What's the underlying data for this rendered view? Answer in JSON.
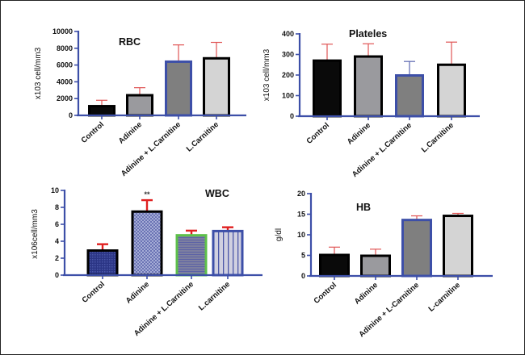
{
  "chart_data": [
    {
      "id": "rbc",
      "type": "bar",
      "title": "RBC",
      "ylabel": "x103 cell/mm3",
      "xlabel": "",
      "ylim": [
        0,
        10000
      ],
      "yticks": [
        0,
        2000,
        4000,
        6000,
        8000,
        10000
      ],
      "categories": [
        "Control",
        "Adinine",
        "Adinine + L.Carnitine",
        "L.Carnitine"
      ],
      "values": [
        1100,
        2400,
        6400,
        6800
      ],
      "errors": [
        700,
        900,
        2000,
        1900
      ],
      "bar_fills": [
        "#0a0a0a",
        "#9a9a9e",
        "#7f7f7f",
        "#d4d4d4"
      ],
      "bar_borders": [
        "#000000",
        "#000000",
        "#3d4fa8",
        "#000000"
      ],
      "error_color": "#e05555",
      "annotations": []
    },
    {
      "id": "platelets",
      "type": "bar",
      "title": "Plateles",
      "ylabel": "x103 cell/mm3",
      "xlabel": "",
      "ylim": [
        0,
        400
      ],
      "yticks": [
        0,
        100,
        200,
        300,
        400
      ],
      "categories": [
        "Control",
        "Adinine",
        "Adinine + L.Carnitine",
        "L.Carnitine"
      ],
      "values": [
        270,
        290,
        198,
        250
      ],
      "errors": [
        80,
        62,
        68,
        110
      ],
      "bar_fills": [
        "#0a0a0a",
        "#9a9a9e",
        "#7f7f7f",
        "#d4d4d4"
      ],
      "bar_borders": [
        "#000000",
        "#000000",
        "#3d4fa8",
        "#000000"
      ],
      "error_colors": [
        "#e05555",
        "#e05555",
        "#5a66b0",
        "#e05555"
      ],
      "annotations": []
    },
    {
      "id": "wbc",
      "type": "bar",
      "title": "WBC",
      "ylabel": "x106cell/mm3",
      "xlabel": "",
      "ylim": [
        0,
        10
      ],
      "yticks": [
        0,
        2,
        4,
        6,
        8,
        10
      ],
      "categories": [
        "Control",
        "Adinine",
        "Adinine + L.Carnitine",
        "L.carnitine"
      ],
      "values": [
        2.9,
        7.5,
        4.7,
        5.2
      ],
      "errors": [
        0.75,
        1.35,
        0.55,
        0.45
      ],
      "bar_fills": [
        "#2b3585",
        "#8a93c6",
        "#7076a8",
        "#c6c8dc"
      ],
      "bar_borders": [
        "#000000",
        "#000000",
        "#5ec04a",
        "#3d4fa8"
      ],
      "bar_patterns": [
        "dense-dots",
        "checker",
        "horizontal-lines",
        "vertical-lines"
      ],
      "error_color": "#e02020",
      "annotations": [
        {
          "category": "Adinine",
          "text": "**"
        }
      ]
    },
    {
      "id": "hb",
      "type": "bar",
      "title": "HB",
      "ylabel": "g/dl",
      "xlabel": "",
      "ylim": [
        0,
        20
      ],
      "yticks": [
        0,
        5,
        10,
        15,
        20
      ],
      "categories": [
        "Control",
        "Adinine",
        "Adinine + L-Carnitine",
        "L-carnitine"
      ],
      "values": [
        5.1,
        4.9,
        13.6,
        14.6
      ],
      "errors": [
        1.9,
        1.6,
        1.0,
        0.6
      ],
      "bar_fills": [
        "#0a0a0a",
        "#9a9a9e",
        "#7f7f7f",
        "#d4d4d4"
      ],
      "bar_borders": [
        "#000000",
        "#000000",
        "#3d4fa8",
        "#000000"
      ],
      "error_color": "#e05555",
      "annotations": []
    }
  ],
  "axis_color": "#3d4fa8"
}
